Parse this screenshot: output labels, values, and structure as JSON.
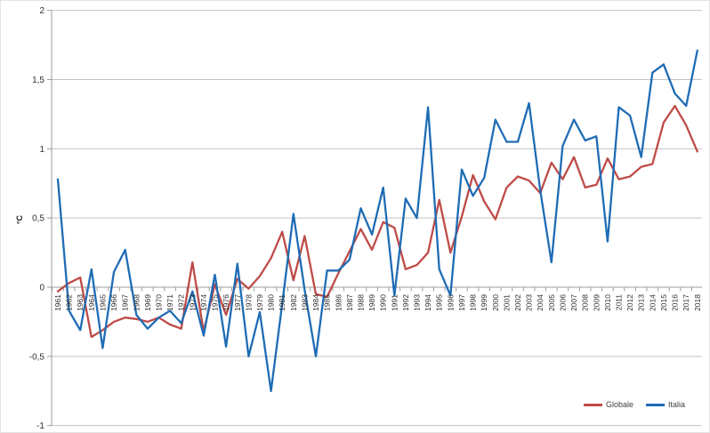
{
  "chart": {
    "ylabel": "°C",
    "colors": {
      "globale": "#BE4B48",
      "italia": "#1F6CB5",
      "gridline": "#C3C3C3",
      "axis": "#9C9C9C",
      "label_text": "#303030"
    }
  },
  "chart_data": {
    "type": "line",
    "title": "",
    "xlabel": "",
    "ylabel": "°C",
    "ylim": [
      -1,
      2
    ],
    "grid": true,
    "legend_position": "bottom-right",
    "ytick_values": [
      2,
      1.5,
      1,
      0.5,
      0,
      -0.5,
      -1
    ],
    "ytick_labels": [
      "2",
      "1,5",
      "1",
      "0,5",
      "0",
      "-0,5",
      "-1"
    ],
    "x": [
      1961,
      1962,
      1963,
      1964,
      1965,
      1966,
      1967,
      1968,
      1969,
      1970,
      1971,
      1972,
      1973,
      1974,
      1975,
      1976,
      1977,
      1978,
      1979,
      1980,
      1981,
      1982,
      1983,
      1984,
      1985,
      1986,
      1987,
      1988,
      1989,
      1990,
      1991,
      1992,
      1993,
      1994,
      1995,
      1996,
      1997,
      1998,
      1999,
      2000,
      2001,
      2002,
      2003,
      2004,
      2005,
      2006,
      2007,
      2008,
      2009,
      2010,
      2011,
      2012,
      2013,
      2014,
      2015,
      2016,
      2017,
      2018
    ],
    "series": [
      {
        "name": "Globale",
        "color": "#BE4B48",
        "values": [
          -0.03,
          0.03,
          0.07,
          -0.36,
          -0.31,
          -0.25,
          -0.22,
          -0.23,
          -0.25,
          -0.22,
          -0.27,
          -0.3,
          0.18,
          -0.32,
          0.02,
          -0.2,
          0.06,
          -0.01,
          0.08,
          0.21,
          0.4,
          0.05,
          0.37,
          -0.05,
          -0.07,
          0.1,
          0.26,
          0.42,
          0.27,
          0.47,
          0.43,
          0.13,
          0.16,
          0.25,
          0.63,
          0.25,
          0.51,
          0.81,
          0.62,
          0.49,
          0.72,
          0.8,
          0.77,
          0.68,
          0.9,
          0.78,
          0.94,
          0.72,
          0.74,
          0.93,
          0.78,
          0.8,
          0.87,
          0.89,
          1.19,
          1.31,
          1.17,
          0.98
        ]
      },
      {
        "name": "Italia",
        "color": "#1F6CB5",
        "values": [
          0.78,
          -0.17,
          -0.31,
          0.13,
          -0.44,
          0.11,
          0.27,
          -0.2,
          -0.3,
          -0.22,
          -0.17,
          -0.26,
          -0.03,
          -0.35,
          0.09,
          -0.43,
          0.17,
          -0.5,
          -0.18,
          -0.75,
          -0.12,
          0.53,
          -0.02,
          -0.5,
          0.12,
          0.12,
          0.2,
          0.57,
          0.38,
          0.72,
          -0.06,
          0.64,
          0.5,
          1.3,
          0.13,
          -0.06,
          0.85,
          0.66,
          0.79,
          1.21,
          1.05,
          1.05,
          1.33,
          0.7,
          0.18,
          1.02,
          1.21,
          1.06,
          1.09,
          0.33,
          1.3,
          1.24,
          0.94,
          1.55,
          1.61,
          1.4,
          1.31,
          1.71
        ]
      }
    ]
  }
}
